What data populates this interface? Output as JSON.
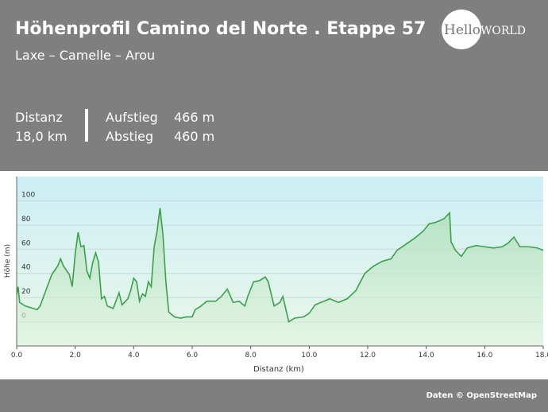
{
  "header": {
    "title": "Höhenprofil Camino del Norte . Etappe 57",
    "subtitle": "Laxe – Camelle – Arou",
    "stats": [
      {
        "label": "Distanz",
        "value": "18,0 km"
      },
      {
        "label": "Aufstieg",
        "value": "466 m"
      },
      {
        "label": "Abstieg",
        "value": "460 m"
      }
    ]
  },
  "logo": [
    "Hello",
    "WORLD"
  ],
  "footer": "Daten © OpenStreetMap",
  "chart_data": {
    "type": "area",
    "x_label": "Distanz  (km)",
    "y_label": "Höhe (m)",
    "x": [
      0,
      0.05,
      0.1,
      0.3,
      0.7,
      0.8,
      1.0,
      1.2,
      1.4,
      1.5,
      1.6,
      1.8,
      1.9,
      2.0,
      2.1,
      2.2,
      2.3,
      2.4,
      2.5,
      2.6,
      2.7,
      2.8,
      2.9,
      3.0,
      3.1,
      3.3,
      3.5,
      3.6,
      3.8,
      3.9,
      4.0,
      4.1,
      4.2,
      4.3,
      4.4,
      4.5,
      4.6,
      4.7,
      4.8,
      4.9,
      5.0,
      5.1,
      5.2,
      5.4,
      5.6,
      5.8,
      6.0,
      6.1,
      6.3,
      6.5,
      6.8,
      7.0,
      7.2,
      7.4,
      7.6,
      7.8,
      7.9,
      8.1,
      8.3,
      8.5,
      8.6,
      8.8,
      9.0,
      9.1,
      9.3,
      9.5,
      9.8,
      10.0,
      10.2,
      10.5,
      10.7,
      11.0,
      11.3,
      11.6,
      11.9,
      12.2,
      12.5,
      12.8,
      13.0,
      13.3,
      13.6,
      13.9,
      14.1,
      14.3,
      14.6,
      14.8,
      14.85,
      15.0,
      15.2,
      15.4,
      15.7,
      16.0,
      16.3,
      16.6,
      16.8,
      17.0,
      17.2,
      17.5,
      17.8,
      18.0
    ],
    "series": [
      {
        "color": "#3aa14a",
        "values": [
          23,
          29,
          16,
          13,
          10,
          13,
          26,
          39,
          46,
          52,
          46,
          39,
          29,
          56,
          74,
          62,
          63,
          42,
          36,
          49,
          57,
          49,
          19,
          21,
          13,
          11,
          24,
          14,
          19,
          26,
          36,
          33,
          17,
          23,
          21,
          33,
          29,
          62,
          75,
          94,
          72,
          33,
          8,
          4,
          3,
          4,
          4,
          10,
          13,
          17,
          17,
          21,
          27,
          16,
          17,
          13,
          21,
          33,
          34,
          37,
          33,
          13,
          16,
          21,
          0,
          3,
          4,
          7,
          14,
          17,
          19,
          16,
          19,
          26,
          40,
          46,
          50,
          52,
          59,
          64,
          69,
          75,
          81,
          82,
          85,
          90,
          66,
          59,
          54,
          61,
          63,
          62,
          61,
          62,
          65,
          70,
          62,
          62,
          61,
          59
        ]
      }
    ],
    "xlim": [
      0,
      18
    ],
    "ylim": [
      -20,
      120
    ],
    "xticks": [
      {
        "value": 0,
        "label": "0.0"
      },
      {
        "value": 2,
        "label": "2.0"
      },
      {
        "value": 4,
        "label": "4.0"
      },
      {
        "value": 6,
        "label": "6.0"
      },
      {
        "value": 8,
        "label": "8.0"
      },
      {
        "value": 10,
        "label": "10.0"
      },
      {
        "value": 12,
        "label": "12.0"
      },
      {
        "value": 14,
        "label": "14.0"
      },
      {
        "value": 16,
        "label": "16.0"
      },
      {
        "value": 18,
        "label": "18.0"
      }
    ],
    "yticks": [
      0,
      20,
      40,
      60,
      80,
      100
    ],
    "grid": true
  }
}
